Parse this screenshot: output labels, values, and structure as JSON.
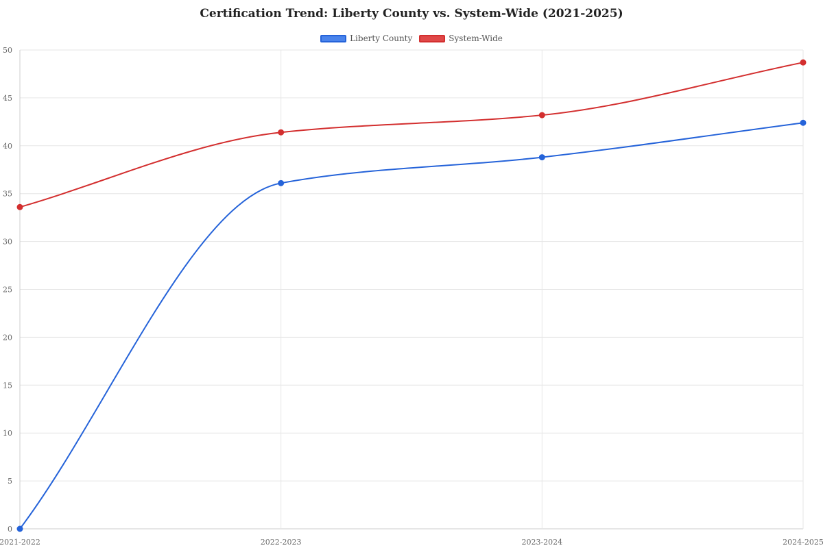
{
  "chart_data": {
    "type": "line",
    "title": "Certification Trend: Liberty County vs. System-Wide (2021-2025)",
    "categories": [
      "2021-2022",
      "2022-2023",
      "2023-2024",
      "2024-2025"
    ],
    "series": [
      {
        "name": "Liberty County",
        "values": [
          0,
          36.1,
          38.8,
          42.4
        ],
        "color": "#2563d9",
        "fill": "#4a84ec"
      },
      {
        "name": "System-Wide",
        "values": [
          33.6,
          41.4,
          43.2,
          48.7
        ],
        "color": "#d32f2f",
        "fill": "#e04848"
      }
    ],
    "ylim": [
      0,
      50
    ],
    "yticks": [
      "0",
      "5",
      "10",
      "15",
      "20",
      "25",
      "30",
      "35",
      "40",
      "45",
      "50"
    ],
    "grid": true,
    "legend_position": "top-center"
  }
}
